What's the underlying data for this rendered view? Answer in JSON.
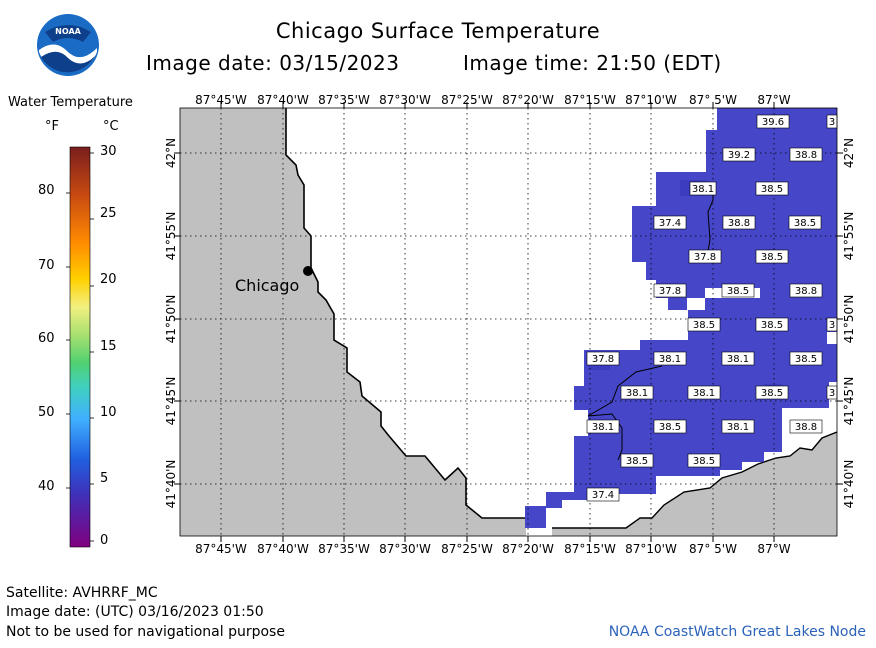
{
  "header": {
    "title": "Chicago Surface Temperature",
    "image_date": "Image date: 03/15/2023",
    "image_time": "Image time: 21:50 (EDT)"
  },
  "legend": {
    "title": "Water Temperature",
    "unit_f": "°F",
    "unit_c": "°C",
    "f_ticks": [
      "80",
      "70",
      "60",
      "50",
      "40"
    ],
    "c_ticks": [
      "30",
      "25",
      "20",
      "15",
      "10",
      "5",
      "0"
    ]
  },
  "map": {
    "lon_labels": [
      "87°45'W",
      "87°40'W",
      "87°35'W",
      "87°30'W",
      "87°25'W",
      "87°20'W",
      "87°15'W",
      "87°10'W",
      "87° 5'W",
      "87°W"
    ],
    "lat_labels": [
      "42°N",
      "41°55'N",
      "41°50'N",
      "41°45'N",
      "41°40'N"
    ],
    "city_label": "Chicago",
    "land_color": "#c0c0c0",
    "water_color": "#4646c8",
    "water_color_dark": "#3c3cc0",
    "temperature_labels": [
      "39.6",
      "3",
      "39.2",
      "38.8",
      "38.1",
      "38.5",
      "37.4",
      "38.8",
      "38.5",
      "37.8",
      "38.5",
      "37.8",
      "38.5",
      "38.8",
      "38.5",
      "38.5",
      "3",
      "37.8",
      "38.1",
      "38.1",
      "38.5",
      "38.1",
      "38.1",
      "38.5",
      "3",
      "38.1",
      "38.5",
      "38.1",
      "38.8",
      "38.5",
      "38.5",
      "37.4"
    ]
  },
  "footer": {
    "satellite": "Satellite: AVHRRF_MC",
    "utc_date": "Image date: (UTC) 03/16/2023  01:50",
    "disclaimer": "Not to be used for navigational purpose",
    "credit": "NOAA CoastWatch Great Lakes Node"
  },
  "logo": {
    "text": "NOAA"
  }
}
